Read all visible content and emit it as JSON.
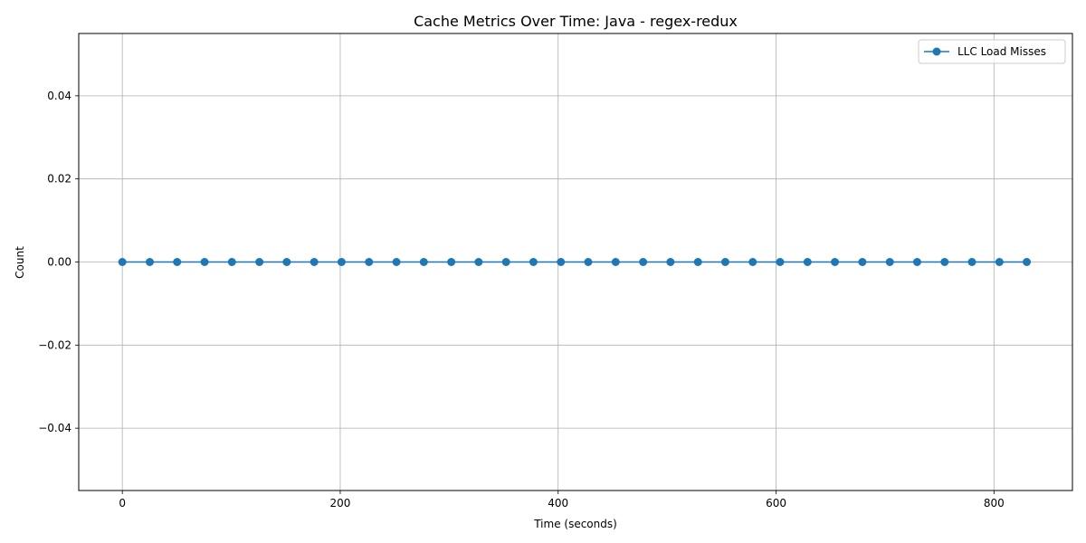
{
  "chart_data": {
    "type": "line",
    "title": "Cache Metrics Over Time: Java - regex-redux",
    "xlabel": "Time (seconds)",
    "ylabel": "Count",
    "xlim": [
      -40,
      872
    ],
    "ylim": [
      -0.055,
      0.055
    ],
    "xticks": [
      0,
      200,
      400,
      600,
      800
    ],
    "xtick_labels": [
      "0",
      "200",
      "400",
      "600",
      "800"
    ],
    "yticks": [
      -0.04,
      -0.02,
      0.0,
      0.02,
      0.04
    ],
    "ytick_labels": [
      "−0.04",
      "−0.02",
      "0.00",
      "0.02",
      "0.04"
    ],
    "grid": true,
    "legend": {
      "position": "top-right"
    },
    "series": [
      {
        "name": "LLC Load Misses",
        "color": "#1f77b4",
        "marker": "circle",
        "x": [
          0,
          25.2,
          50.3,
          75.5,
          100.6,
          125.8,
          150.9,
          176.1,
          201.2,
          226.4,
          251.6,
          276.7,
          301.9,
          327.0,
          352.2,
          377.3,
          402.5,
          427.6,
          452.8,
          478.0,
          503.1,
          528.3,
          553.4,
          578.6,
          603.7,
          628.9,
          654.0,
          679.2,
          704.4,
          729.5,
          754.7,
          779.8,
          805.0,
          830.1
        ],
        "y": [
          0,
          0,
          0,
          0,
          0,
          0,
          0,
          0,
          0,
          0,
          0,
          0,
          0,
          0,
          0,
          0,
          0,
          0,
          0,
          0,
          0,
          0,
          0,
          0,
          0,
          0,
          0,
          0,
          0,
          0,
          0,
          0,
          0,
          0
        ]
      }
    ]
  }
}
